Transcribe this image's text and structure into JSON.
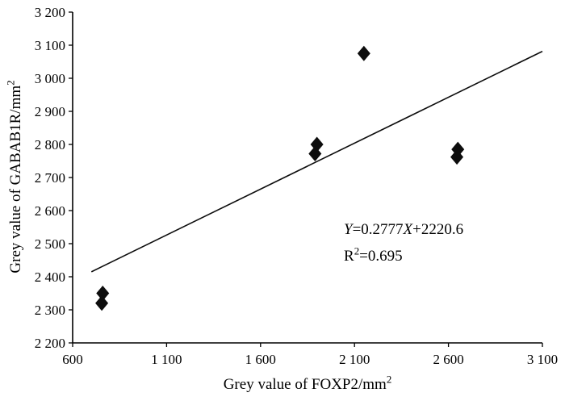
{
  "chart_data": {
    "type": "scatter",
    "title": "",
    "xlabel": "Grey value of FOXP2/mm",
    "xlabel_sup": "2",
    "ylabel": "Grey value of GABAB1R/mm",
    "ylabel_sup": "2",
    "xlim": [
      600,
      3100
    ],
    "ylim": [
      2200,
      3200
    ],
    "grid": false,
    "legend": "none",
    "x_ticks": {
      "values": [
        600,
        1100,
        1600,
        2100,
        2600,
        3100
      ],
      "labels": [
        "600",
        "1 100",
        "1 600",
        "2 100",
        "2 600",
        "3 100"
      ]
    },
    "y_ticks": {
      "values": [
        2200,
        2300,
        2400,
        2500,
        2600,
        2700,
        2800,
        2900,
        3000,
        3100,
        3200
      ],
      "labels": [
        "2 200",
        "2 300",
        "2 400",
        "2 500",
        "2 600",
        "2 700",
        "2 800",
        "2 900",
        "3 000",
        "3 100",
        "3 200"
      ]
    },
    "points": [
      {
        "x": 760,
        "y": 2350
      },
      {
        "x": 755,
        "y": 2320
      },
      {
        "x": 1900,
        "y": 2800
      },
      {
        "x": 1890,
        "y": 2772
      },
      {
        "x": 2150,
        "y": 3075
      },
      {
        "x": 2650,
        "y": 2785
      },
      {
        "x": 2645,
        "y": 2762
      }
    ],
    "regression": {
      "slope": 0.2777,
      "intercept": 2220.6,
      "x_start": 700,
      "x_end": 3100
    },
    "annotation": {
      "eq_y": "Y",
      "eq_mid": "=0.2777",
      "eq_x": "X",
      "eq_rest": "+2220.6",
      "r_label": "R",
      "r_sup": "2",
      "r_value": "=0.695"
    },
    "marker_color": "#0d0d0d",
    "line_color": "#0d0d0d",
    "axis_color": "#000000"
  }
}
